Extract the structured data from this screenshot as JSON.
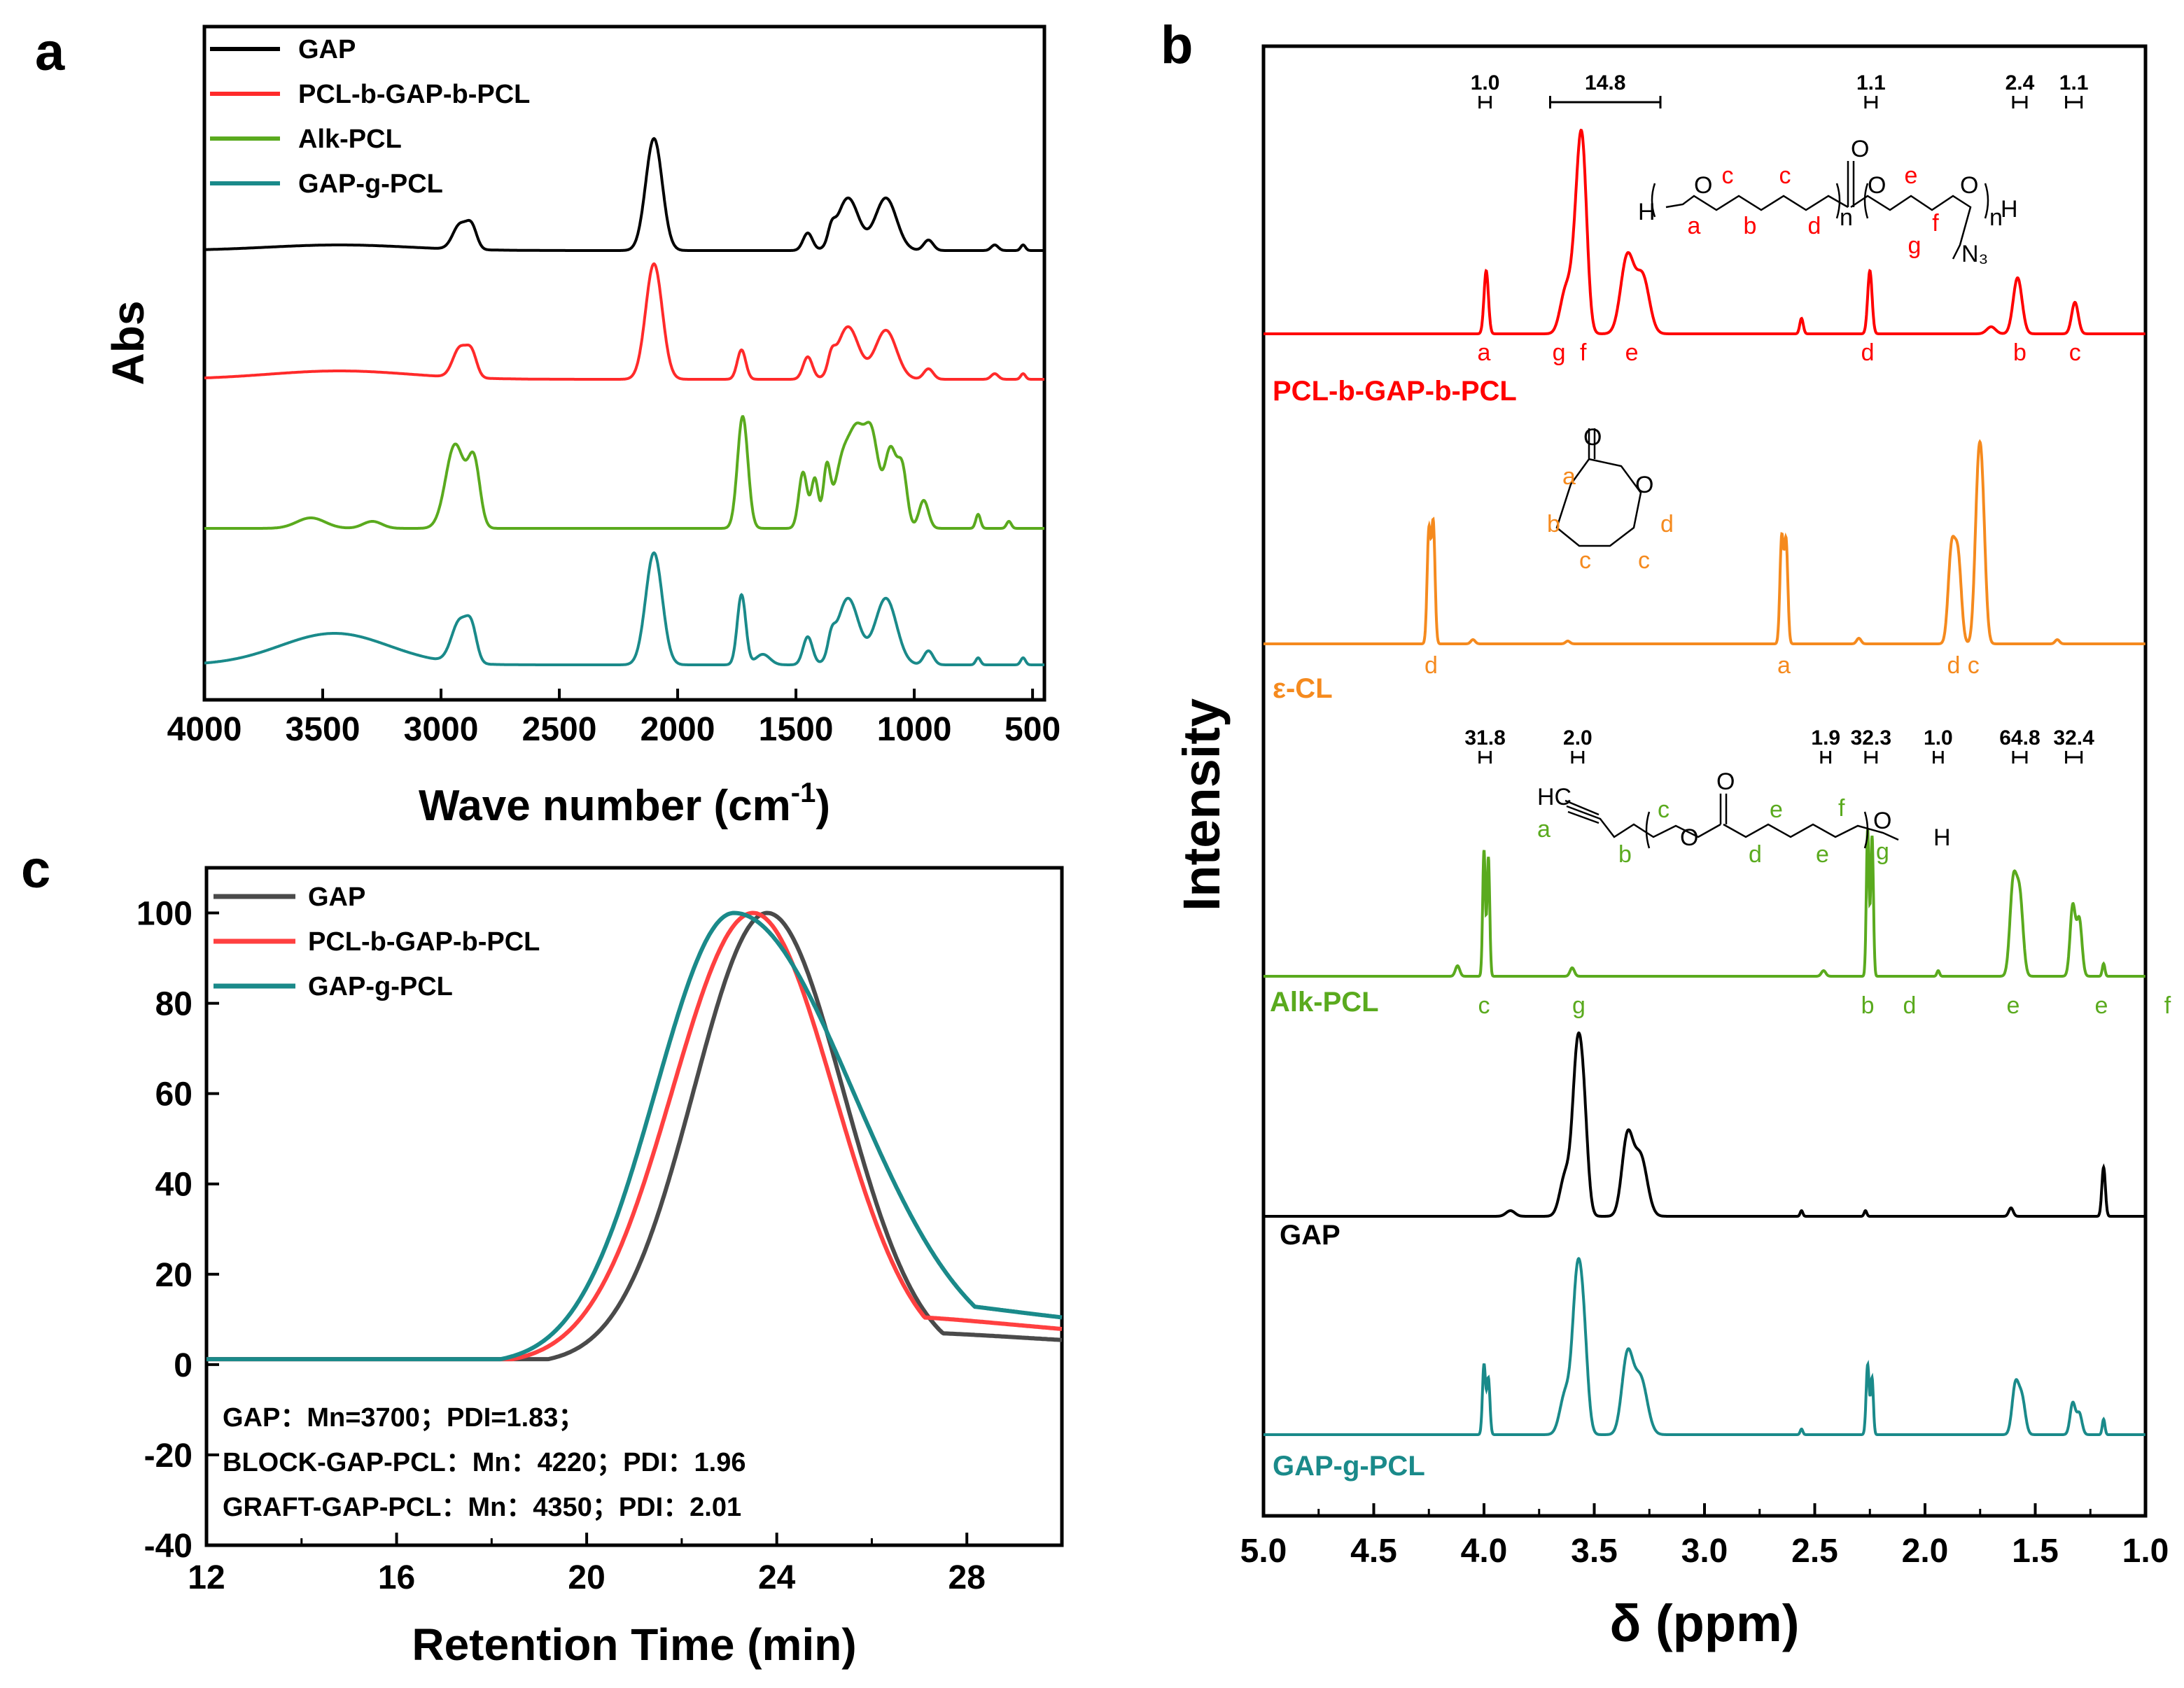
{
  "chart_data": [
    {
      "panel": "a",
      "type": "line",
      "xlabel": "Wave number (cm",
      "xlabel_sup": "-1",
      "xlabel_close": ")",
      "ylabel": "Abs",
      "xlim": [
        4000,
        450
      ],
      "x_reversed": true,
      "xticks": [
        "4000",
        "3500",
        "3000",
        "2500",
        "2000",
        "1500",
        "1000",
        "500"
      ],
      "legend_position": "top-left",
      "series": [
        {
          "name": "GAP",
          "color": "#000000",
          "peaks": [
            [
              3430,
              8,
              300
            ],
            [
              2920,
              35,
              30
            ],
            [
              2870,
              30,
              22
            ],
            [
              2100,
              160,
              35
            ],
            [
              1450,
              25,
              20
            ],
            [
              1350,
              20,
              15
            ],
            [
              1280,
              75,
              45
            ],
            [
              1120,
              75,
              45
            ],
            [
              940,
              15,
              20
            ],
            [
              660,
              8,
              15
            ],
            [
              540,
              8,
              10
            ]
          ]
        },
        {
          "name": "PCL-b-GAP-b-PCL",
          "color": "#ff2a2a",
          "peaks": [
            [
              3430,
              12,
              300
            ],
            [
              2920,
              42,
              30
            ],
            [
              2870,
              32,
              22
            ],
            [
              2100,
              165,
              35
            ],
            [
              1730,
              42,
              18
            ],
            [
              1450,
              32,
              20
            ],
            [
              1350,
              22,
              15
            ],
            [
              1280,
              75,
              45
            ],
            [
              1120,
              70,
              45
            ],
            [
              940,
              15,
              20
            ],
            [
              660,
              8,
              15
            ],
            [
              540,
              8,
              10
            ]
          ]
        },
        {
          "name": "Alk-PCL",
          "color": "#5aaa1e",
          "peaks": [
            [
              3550,
              15,
              60
            ],
            [
              3290,
              10,
              40
            ],
            [
              2940,
              120,
              40
            ],
            [
              2860,
              90,
              25
            ],
            [
              1725,
              160,
              22
            ],
            [
              1470,
              80,
              18
            ],
            [
              1420,
              70,
              15
            ],
            [
              1370,
              80,
              15
            ],
            [
              1300,
              100,
              35
            ],
            [
              1240,
              110,
              30
            ],
            [
              1180,
              130,
              30
            ],
            [
              1100,
              110,
              25
            ],
            [
              1050,
              80,
              20
            ],
            [
              960,
              40,
              20
            ],
            [
              730,
              20,
              10
            ],
            [
              600,
              10,
              10
            ]
          ]
        },
        {
          "name": "GAP-g-PCL",
          "color": "#1a8a8a",
          "peaks": [
            [
              3450,
              45,
              230
            ],
            [
              2920,
              60,
              35
            ],
            [
              2870,
              40,
              22
            ],
            [
              2100,
              160,
              35
            ],
            [
              1730,
              100,
              18
            ],
            [
              1640,
              15,
              30
            ],
            [
              1450,
              40,
              20
            ],
            [
              1350,
              25,
              15
            ],
            [
              1280,
              95,
              45
            ],
            [
              1120,
              95,
              45
            ],
            [
              940,
              20,
              20
            ],
            [
              730,
              10,
              10
            ],
            [
              540,
              10,
              10
            ]
          ]
        }
      ]
    },
    {
      "panel": "b",
      "type": "line",
      "xlabel": "δ (ppm)",
      "ylabel": "Intensity",
      "xlim": [
        5.0,
        1.0
      ],
      "x_reversed": true,
      "xticks": [
        "5.0",
        "4.5",
        "4.0",
        "3.5",
        "3.0",
        "2.5",
        "2.0",
        "1.5",
        "1.0"
      ],
      "series": [
        {
          "name": "PCL-b-GAP-b-PCL",
          "color": "#ff0000",
          "peaks": [
            [
              3.99,
              90,
              0.01
            ],
            [
              3.63,
              60,
              0.025
            ],
            [
              3.57,
              180,
              0.025
            ],
            [
              3.55,
              140,
              0.02
            ],
            [
              3.35,
              110,
              0.03
            ],
            [
              3.28,
              80,
              0.03
            ],
            [
              2.56,
              22,
              0.008
            ],
            [
              2.25,
              90,
              0.01
            ],
            [
              1.58,
              80,
              0.02
            ],
            [
              1.32,
              45,
              0.015
            ],
            [
              1.7,
              10,
              0.02
            ]
          ],
          "peak_labels": [
            [
              "a",
              4.0
            ],
            [
              "g",
              3.66
            ],
            [
              "f",
              3.55
            ],
            [
              "e",
              3.33
            ],
            [
              "d",
              2.26
            ],
            [
              "b",
              1.57
            ],
            [
              "c",
              1.32
            ]
          ],
          "integrals": [
            [
              "1.0",
              4.02,
              3.97
            ],
            [
              "14.8",
              3.7,
              3.2
            ],
            [
              "1.1",
              2.27,
              2.22
            ],
            [
              "2.4",
              1.6,
              1.54
            ],
            [
              "1.1",
              1.36,
              1.29
            ]
          ]
        },
        {
          "name": "ε-CL",
          "color": "#f58a1e",
          "peaks": [
            [
              4.25,
              160,
              0.008
            ],
            [
              4.23,
              170,
              0.008
            ],
            [
              4.05,
              6,
              0.01
            ],
            [
              2.65,
              150,
              0.008
            ],
            [
              2.63,
              145,
              0.008
            ],
            [
              2.3,
              8,
              0.01
            ],
            [
              1.88,
              130,
              0.015
            ],
            [
              1.85,
              120,
              0.015
            ],
            [
              1.76,
              190,
              0.015
            ],
            [
              1.74,
              170,
              0.015
            ],
            [
              1.4,
              6,
              0.01
            ],
            [
              3.62,
              4,
              0.01
            ]
          ],
          "peak_labels": [
            [
              "d",
              4.24
            ],
            [
              "a",
              2.64
            ],
            [
              "d",
              1.87
            ],
            [
              "c",
              1.78
            ]
          ]
        },
        {
          "name": "Alk-PCL",
          "color": "#5aaa1e",
          "peaks": [
            [
              4.12,
              15,
              0.01
            ],
            [
              4.0,
              180,
              0.006
            ],
            [
              3.98,
              170,
              0.006
            ],
            [
              3.6,
              12,
              0.01
            ],
            [
              2.46,
              8,
              0.01
            ],
            [
              2.26,
              210,
              0.006
            ],
            [
              2.24,
              200,
              0.006
            ],
            [
              1.94,
              8,
              0.006
            ],
            [
              1.6,
              130,
              0.015
            ],
            [
              1.57,
              110,
              0.015
            ],
            [
              1.33,
              100,
              0.012
            ],
            [
              1.3,
              80,
              0.012
            ],
            [
              1.19,
              18,
              0.006
            ]
          ],
          "peak_labels": [
            [
              "c",
              4.0
            ],
            [
              "g",
              3.57
            ],
            [
              "b",
              2.26
            ],
            [
              "d",
              2.07
            ],
            [
              "e",
              1.6
            ],
            [
              "e",
              1.2
            ],
            [
              "f",
              0.9
            ]
          ],
          "integrals": [
            [
              "31.8",
              4.02,
              3.97
            ],
            [
              "2.0",
              3.6,
              3.55
            ],
            [
              "1.9",
              2.47,
              2.43
            ],
            [
              "32.3",
              2.27,
              2.22
            ],
            [
              "1.0",
              1.96,
              1.92
            ],
            [
              "64.8",
              1.6,
              1.54
            ],
            [
              "32.4",
              1.36,
              1.29
            ]
          ]
        },
        {
          "name": "GAP",
          "color": "#000000",
          "peaks": [
            [
              3.88,
              8,
              0.02
            ],
            [
              3.63,
              60,
              0.025
            ],
            [
              3.58,
              190,
              0.02
            ],
            [
              3.55,
              150,
              0.02
            ],
            [
              3.35,
              110,
              0.025
            ],
            [
              3.29,
              85,
              0.03
            ],
            [
              2.56,
              8,
              0.006
            ],
            [
              2.27,
              8,
              0.006
            ],
            [
              1.61,
              12,
              0.01
            ],
            [
              1.19,
              70,
              0.008
            ]
          ]
        },
        {
          "name": "GAP-g-PCL",
          "color": "#1a8a8a",
          "peaks": [
            [
              4.0,
              100,
              0.007
            ],
            [
              3.98,
              80,
              0.007
            ],
            [
              3.63,
              60,
              0.025
            ],
            [
              3.58,
              185,
              0.02
            ],
            [
              3.55,
              140,
              0.02
            ],
            [
              3.35,
              110,
              0.025
            ],
            [
              3.29,
              80,
              0.03
            ],
            [
              2.56,
              8,
              0.006
            ],
            [
              2.26,
              100,
              0.007
            ],
            [
              2.24,
              80,
              0.006
            ],
            [
              1.59,
              70,
              0.015
            ],
            [
              1.56,
              50,
              0.015
            ],
            [
              1.33,
              45,
              0.012
            ],
            [
              1.3,
              30,
              0.012
            ],
            [
              1.19,
              22,
              0.006
            ]
          ]
        }
      ],
      "structures": {
        "pcl_gap_pcl": {
          "labels": [
            "a",
            "b",
            "c",
            "c",
            "d",
            "e",
            "f",
            "g"
          ],
          "atoms": [
            "H",
            "O",
            "O",
            "O",
            "O",
            "H",
            "N₃",
            "n",
            "n"
          ]
        },
        "cl": {
          "labels": [
            "a",
            "b",
            "c",
            "c",
            "d"
          ],
          "atoms": [
            "O",
            "O"
          ]
        },
        "alk": {
          "labels": [
            "a",
            "b",
            "c",
            "d",
            "e",
            "e",
            "f",
            "g"
          ],
          "atoms": [
            "HC",
            "O",
            "O",
            "O",
            "H"
          ]
        }
      }
    },
    {
      "panel": "c",
      "type": "line",
      "xlabel": "Retention Time (min)",
      "ylabel": "",
      "xlim": [
        12,
        30
      ],
      "ylim": [
        -40,
        110
      ],
      "xticks": [
        "12",
        "16",
        "20",
        "24",
        "28"
      ],
      "yticks": [
        "100",
        "80",
        "60",
        "40",
        "20",
        "0",
        "-20",
        "-40"
      ],
      "legend_position": "top-left",
      "series": [
        {
          "name": "GAP",
          "color": "#4a4a4a",
          "peak": 23.8,
          "sigma_left": 1.55,
          "sigma_right": 1.6
        },
        {
          "name": "PCL-b-GAP-b-PCL",
          "color": "#ff4040",
          "peak": 23.5,
          "sigma_left": 1.7,
          "sigma_right": 1.7
        },
        {
          "name": "GAP-g-PCL",
          "color": "#1a8a8a",
          "peak": 23.1,
          "sigma_left": 1.65,
          "sigma_right": 2.5
        }
      ],
      "notes": [
        "GAP：Mn=3700；PDI=1.83；",
        "BLOCK-GAP-PCL：Mn：4220；PDI：1.96",
        "GRAFT-GAP-PCL：Mn：4350；PDI：2.01"
      ]
    }
  ],
  "panel_labels": [
    "a",
    "b",
    "c"
  ]
}
